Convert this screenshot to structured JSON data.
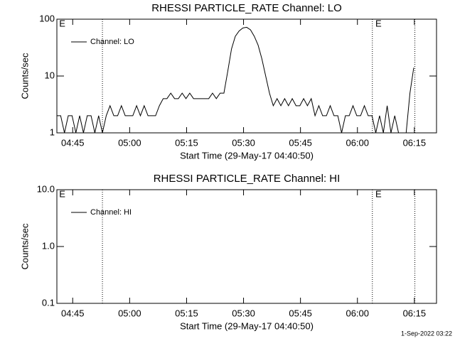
{
  "chart_data": [
    {
      "type": "line",
      "title": "RHESSI PARTICLE_RATE Channel: LO",
      "ylabel": "Counts/sec",
      "xlabel": "Start Time (29-May-17 04:40:50)",
      "x": [
        0,
        1,
        2,
        3,
        4,
        5,
        6,
        7,
        8,
        9,
        10,
        11,
        12,
        13,
        14,
        15,
        16,
        17,
        18,
        19,
        20,
        21,
        22,
        23,
        24,
        25,
        26,
        27,
        28,
        29,
        30,
        31,
        32,
        33,
        34,
        35,
        36,
        37,
        38,
        39,
        40,
        41,
        42,
        43,
        44,
        45,
        46,
        47,
        48,
        49,
        50,
        51,
        52,
        53,
        54,
        55,
        56,
        57,
        58,
        59,
        60,
        61,
        62,
        63,
        64,
        65,
        66,
        67,
        68,
        69,
        70,
        71,
        72,
        73,
        74,
        75,
        76,
        77,
        78,
        79,
        80,
        81,
        82,
        83,
        84,
        85,
        86,
        87,
        88,
        89,
        90,
        91,
        92,
        93,
        94
      ],
      "series": [
        {
          "name": "Channel: LO",
          "color": "#000000",
          "values": [
            2,
            2,
            1,
            2,
            2,
            1,
            2,
            1,
            2,
            2,
            1,
            2,
            1,
            2,
            3,
            2,
            2,
            3,
            2,
            2,
            2,
            3,
            2,
            3,
            2,
            2,
            2,
            3,
            4,
            4,
            5,
            4,
            4,
            5,
            4,
            5,
            4,
            4,
            4,
            4,
            4,
            5,
            4,
            5,
            5,
            12,
            30,
            50,
            62,
            70,
            72,
            65,
            50,
            35,
            20,
            10,
            5,
            3,
            4,
            3,
            4,
            3,
            4,
            3,
            3,
            4,
            3,
            4,
            2,
            3,
            2,
            2,
            3,
            2,
            2,
            1,
            2,
            2,
            3,
            2,
            2,
            3,
            2,
            2,
            1,
            2,
            1,
            3,
            1,
            2,
            1,
            1,
            1,
            5,
            14
          ]
        }
      ],
      "xlim": [
        0,
        100
      ],
      "xticks": [
        {
          "value": 4.1667,
          "label": "04:45"
        },
        {
          "value": 19.1667,
          "label": "05:00"
        },
        {
          "value": 34.1667,
          "label": "05:15"
        },
        {
          "value": 49.1667,
          "label": "05:30"
        },
        {
          "value": 64.1667,
          "label": "05:45"
        },
        {
          "value": 79.1667,
          "label": "06:00"
        },
        {
          "value": 94.1667,
          "label": "06:15"
        }
      ],
      "ylim": [
        1,
        100
      ],
      "yticks": [
        1,
        10,
        100
      ],
      "log_y": true,
      "legend": "upper left",
      "vlines": [
        12.0,
        83.1,
        94.3
      ],
      "markers": [
        {
          "x": 0.6,
          "label": "E"
        },
        {
          "x": 83.9,
          "label": "E"
        }
      ]
    },
    {
      "type": "line",
      "title": "RHESSI PARTICLE_RATE Channel: HI",
      "ylabel": "Counts/sec",
      "xlabel": "Start Time (29-May-17 04:40:50)",
      "x": [],
      "series": [
        {
          "name": "Channel: HI",
          "color": "#000000",
          "values": []
        }
      ],
      "xlim": [
        0,
        100
      ],
      "xticks": [
        {
          "value": 4.1667,
          "label": "04:45"
        },
        {
          "value": 19.1667,
          "label": "05:00"
        },
        {
          "value": 34.1667,
          "label": "05:15"
        },
        {
          "value": 49.1667,
          "label": "05:30"
        },
        {
          "value": 64.1667,
          "label": "05:45"
        },
        {
          "value": 79.1667,
          "label": "06:00"
        },
        {
          "value": 94.1667,
          "label": "06:15"
        }
      ],
      "ylim": [
        0.1,
        10
      ],
      "yticks": [
        0.1,
        {
          "value": 1,
          "label": "1.0"
        },
        {
          "value": 10,
          "label": "10.0"
        }
      ],
      "log_y": true,
      "legend": "upper left",
      "vlines": [
        12.0,
        83.1,
        94.3
      ],
      "markers": [
        {
          "x": 0.6,
          "label": "E"
        },
        {
          "x": 83.9,
          "label": "E"
        }
      ]
    }
  ],
  "footer": "1-Sep-2022 03:22"
}
